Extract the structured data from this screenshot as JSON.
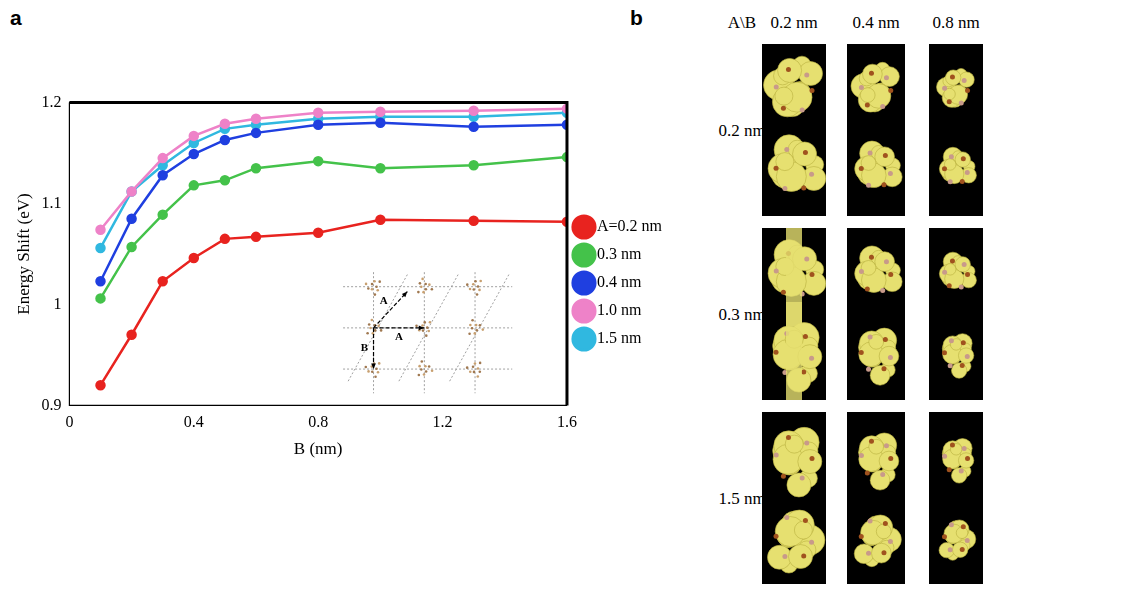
{
  "chart_data": {
    "type": "line",
    "panel_label": "a",
    "x_label": "B (nm)",
    "y_label": "Energy Shift (eV)",
    "x": [
      0.1,
      0.2,
      0.3,
      0.4,
      0.5,
      0.6,
      0.8,
      1.0,
      1.3,
      1.6
    ],
    "series": [
      {
        "name": "A=0.2 nm",
        "color": "#e8231f",
        "values": [
          0.92,
          0.97,
          1.023,
          1.046,
          1.065,
          1.067,
          1.071,
          1.084,
          1.083,
          1.082
        ]
      },
      {
        "name": "0.3 nm",
        "color": "#44c24a",
        "values": [
          1.006,
          1.057,
          1.089,
          1.118,
          1.123,
          1.135,
          1.142,
          1.135,
          1.138,
          1.146
        ]
      },
      {
        "name": "0.4 nm",
        "color": "#1f3fe0",
        "values": [
          1.023,
          1.085,
          1.128,
          1.149,
          1.163,
          1.17,
          1.178,
          1.18,
          1.176,
          1.178
        ]
      },
      {
        "name": "1.0 nm",
        "color": "#ee82c8",
        "values": [
          1.074,
          1.112,
          1.145,
          1.167,
          1.179,
          1.184,
          1.19,
          1.191,
          1.192,
          1.194
        ]
      },
      {
        "name": "1.5 nm",
        "color": "#30b8e0",
        "values": [
          1.056,
          1.112,
          1.138,
          1.16,
          1.174,
          1.178,
          1.184,
          1.186,
          1.186,
          1.19
        ]
      }
    ],
    "xlim": [
      0,
      1.6
    ],
    "xticks": [
      0,
      0.4,
      0.8,
      1.2,
      1.6
    ],
    "ylim": [
      0.9,
      1.2
    ],
    "yticks": [
      0.9,
      1,
      1.1,
      1.2
    ],
    "grid": false,
    "legend": "right",
    "marker": "circle",
    "line_style": "solid",
    "inset_labels": [
      "A",
      "A",
      "B"
    ]
  },
  "image_grid": {
    "panel_label": "b",
    "corner": "A\\B",
    "columns": [
      "0.2 nm",
      "0.4 nm",
      "0.8 nm"
    ],
    "rows": [
      "0.2 nm",
      "0.3 nm",
      "1.5 nm"
    ]
  }
}
